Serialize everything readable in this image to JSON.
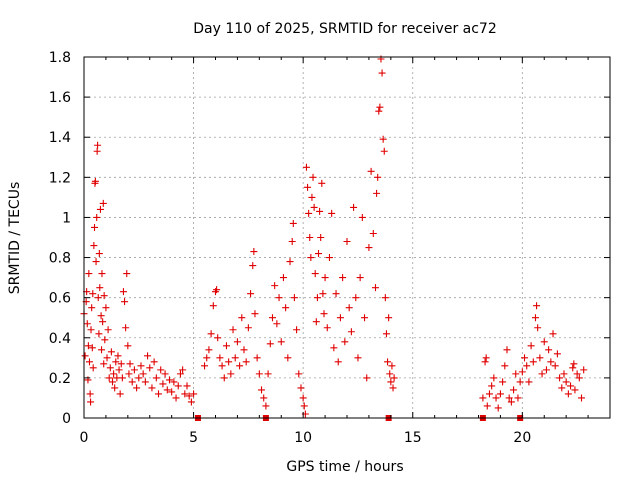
{
  "chart_data": {
    "type": "scatter",
    "title": "Day 110 of 2025, SRMTID for receiver ac72",
    "xlabel": "GPS time / hours",
    "ylabel": "SRMTID / TECUs",
    "xlim": [
      0,
      24
    ],
    "ylim": [
      0,
      1.8
    ],
    "x_ticks": [
      0,
      5,
      10,
      15,
      20
    ],
    "x_tick_labels": [
      "0",
      "5",
      "10",
      "15",
      "20"
    ],
    "y_ticks": [
      0,
      0.2,
      0.4,
      0.6,
      0.8,
      1.0,
      1.2,
      1.4,
      1.6,
      1.8
    ],
    "y_tick_labels": [
      "0",
      "0.2",
      "0.4",
      "0.6",
      "0.8",
      "1",
      "1.2",
      "1.4",
      "1.6",
      "1.8"
    ],
    "grid": true,
    "marker": "+",
    "color": "#e00000",
    "data_gaps_hours": [
      [
        14.2,
        18.2
      ],
      [
        22.8,
        24
      ]
    ],
    "zero_markers_x": [
      5.2,
      8.3,
      13.9,
      18.2,
      19.9
    ],
    "series": [
      {
        "name": "ac72 SRMTID",
        "points": [
          [
            0.0,
            0.52
          ],
          [
            0.05,
            0.31
          ],
          [
            0.1,
            0.58
          ],
          [
            0.12,
            0.63
          ],
          [
            0.15,
            0.47
          ],
          [
            0.18,
            0.19
          ],
          [
            0.2,
            0.36
          ],
          [
            0.22,
            0.72
          ],
          [
            0.25,
            0.28
          ],
          [
            0.28,
            0.12
          ],
          [
            0.3,
            0.08
          ],
          [
            0.32,
            0.44
          ],
          [
            0.35,
            0.55
          ],
          [
            0.38,
            0.35
          ],
          [
            0.4,
            0.62
          ],
          [
            0.42,
            0.25
          ],
          [
            0.45,
            0.86
          ],
          [
            0.48,
            0.95
          ],
          [
            0.5,
            1.17
          ],
          [
            0.52,
            1.18
          ],
          [
            0.55,
            0.78
          ],
          [
            0.58,
            1.0
          ],
          [
            0.6,
            1.33
          ],
          [
            0.62,
            1.36
          ],
          [
            0.65,
            0.6
          ],
          [
            0.68,
            0.42
          ],
          [
            0.7,
            0.82
          ],
          [
            0.72,
            0.65
          ],
          [
            0.75,
            1.04
          ],
          [
            0.78,
            0.51
          ],
          [
            0.8,
            0.34
          ],
          [
            0.82,
            0.72
          ],
          [
            0.85,
            0.48
          ],
          [
            0.88,
            1.07
          ],
          [
            0.9,
            0.27
          ],
          [
            0.92,
            0.61
          ],
          [
            0.95,
            0.39
          ],
          [
            1.0,
            0.55
          ],
          [
            1.05,
            0.3
          ],
          [
            1.1,
            0.44
          ],
          [
            1.15,
            0.2
          ],
          [
            1.2,
            0.25
          ],
          [
            1.25,
            0.33
          ],
          [
            1.3,
            0.18
          ],
          [
            1.35,
            0.22
          ],
          [
            1.4,
            0.15
          ],
          [
            1.45,
            0.28
          ],
          [
            1.5,
            0.2
          ],
          [
            1.55,
            0.31
          ],
          [
            1.6,
            0.24
          ],
          [
            1.65,
            0.12
          ],
          [
            1.7,
            0.27
          ],
          [
            1.75,
            0.2
          ],
          [
            1.8,
            0.63
          ],
          [
            1.85,
            0.58
          ],
          [
            1.9,
            0.45
          ],
          [
            1.95,
            0.72
          ],
          [
            2.0,
            0.36
          ],
          [
            2.05,
            0.22
          ],
          [
            2.1,
            0.27
          ],
          [
            2.2,
            0.18
          ],
          [
            2.3,
            0.24
          ],
          [
            2.4,
            0.15
          ],
          [
            2.5,
            0.2
          ],
          [
            2.6,
            0.26
          ],
          [
            2.7,
            0.22
          ],
          [
            2.8,
            0.18
          ],
          [
            2.9,
            0.31
          ],
          [
            3.0,
            0.25
          ],
          [
            3.1,
            0.15
          ],
          [
            3.2,
            0.28
          ],
          [
            3.3,
            0.2
          ],
          [
            3.4,
            0.12
          ],
          [
            3.5,
            0.24
          ],
          [
            3.6,
            0.17
          ],
          [
            3.7,
            0.22
          ],
          [
            3.8,
            0.14
          ],
          [
            3.9,
            0.19
          ],
          [
            4.0,
            0.13
          ],
          [
            4.1,
            0.18
          ],
          [
            4.2,
            0.1
          ],
          [
            4.3,
            0.16
          ],
          [
            4.4,
            0.22
          ],
          [
            4.5,
            0.24
          ],
          [
            4.6,
            0.12
          ],
          [
            4.7,
            0.16
          ],
          [
            4.8,
            0.11
          ],
          [
            4.9,
            0.08
          ],
          [
            5.0,
            0.12
          ],
          [
            5.5,
            0.26
          ],
          [
            5.6,
            0.3
          ],
          [
            5.7,
            0.34
          ],
          [
            5.8,
            0.42
          ],
          [
            5.9,
            0.56
          ],
          [
            6.0,
            0.63
          ],
          [
            6.05,
            0.64
          ],
          [
            6.1,
            0.4
          ],
          [
            6.2,
            0.3
          ],
          [
            6.3,
            0.26
          ],
          [
            6.4,
            0.2
          ],
          [
            6.5,
            0.36
          ],
          [
            6.6,
            0.28
          ],
          [
            6.7,
            0.22
          ],
          [
            6.8,
            0.44
          ],
          [
            6.9,
            0.3
          ],
          [
            7.0,
            0.38
          ],
          [
            7.1,
            0.26
          ],
          [
            7.2,
            0.5
          ],
          [
            7.3,
            0.34
          ],
          [
            7.4,
            0.28
          ],
          [
            7.5,
            0.45
          ],
          [
            7.6,
            0.62
          ],
          [
            7.7,
            0.76
          ],
          [
            7.75,
            0.83
          ],
          [
            7.8,
            0.52
          ],
          [
            7.9,
            0.3
          ],
          [
            8.0,
            0.22
          ],
          [
            8.1,
            0.14
          ],
          [
            8.2,
            0.1
          ],
          [
            8.3,
            0.06
          ],
          [
            8.4,
            0.22
          ],
          [
            8.5,
            0.37
          ],
          [
            8.6,
            0.5
          ],
          [
            8.7,
            0.66
          ],
          [
            8.8,
            0.47
          ],
          [
            8.9,
            0.6
          ],
          [
            9.0,
            0.38
          ],
          [
            9.1,
            0.7
          ],
          [
            9.2,
            0.55
          ],
          [
            9.3,
            0.3
          ],
          [
            9.4,
            0.78
          ],
          [
            9.5,
            0.88
          ],
          [
            9.55,
            0.97
          ],
          [
            9.6,
            0.6
          ],
          [
            9.7,
            0.44
          ],
          [
            9.8,
            0.22
          ],
          [
            9.9,
            0.15
          ],
          [
            10.0,
            0.1
          ],
          [
            10.05,
            0.06
          ],
          [
            10.1,
            0.02
          ],
          [
            10.15,
            1.25
          ],
          [
            10.2,
            1.15
          ],
          [
            10.25,
            1.02
          ],
          [
            10.3,
            0.9
          ],
          [
            10.35,
            0.8
          ],
          [
            10.4,
            1.1
          ],
          [
            10.45,
            1.2
          ],
          [
            10.5,
            1.05
          ],
          [
            10.55,
            0.72
          ],
          [
            10.6,
            0.48
          ],
          [
            10.65,
            0.6
          ],
          [
            10.7,
            0.82
          ],
          [
            10.75,
            1.03
          ],
          [
            10.8,
            0.9
          ],
          [
            10.85,
            1.17
          ],
          [
            10.9,
            0.62
          ],
          [
            10.95,
            0.52
          ],
          [
            11.0,
            0.7
          ],
          [
            11.1,
            0.45
          ],
          [
            11.2,
            0.8
          ],
          [
            11.3,
            1.02
          ],
          [
            11.4,
            0.35
          ],
          [
            11.5,
            0.62
          ],
          [
            11.6,
            0.28
          ],
          [
            11.7,
            0.5
          ],
          [
            11.8,
            0.7
          ],
          [
            11.9,
            0.38
          ],
          [
            12.0,
            0.88
          ],
          [
            12.1,
            0.55
          ],
          [
            12.2,
            0.43
          ],
          [
            12.3,
            1.05
          ],
          [
            12.4,
            0.6
          ],
          [
            12.5,
            0.3
          ],
          [
            12.6,
            0.7
          ],
          [
            12.7,
            1.0
          ],
          [
            12.8,
            0.5
          ],
          [
            12.9,
            0.2
          ],
          [
            13.0,
            0.85
          ],
          [
            13.1,
            1.23
          ],
          [
            13.2,
            0.92
          ],
          [
            13.3,
            0.65
          ],
          [
            13.35,
            1.12
          ],
          [
            13.4,
            1.2
          ],
          [
            13.45,
            1.53
          ],
          [
            13.5,
            1.55
          ],
          [
            13.55,
            1.79
          ],
          [
            13.6,
            1.72
          ],
          [
            13.65,
            1.39
          ],
          [
            13.7,
            1.33
          ],
          [
            13.75,
            0.6
          ],
          [
            13.8,
            0.42
          ],
          [
            13.85,
            0.28
          ],
          [
            13.9,
            0.5
          ],
          [
            13.95,
            0.22
          ],
          [
            14.0,
            0.18
          ],
          [
            14.05,
            0.26
          ],
          [
            14.1,
            0.15
          ],
          [
            14.15,
            0.2
          ],
          [
            18.2,
            0.1
          ],
          [
            18.3,
            0.28
          ],
          [
            18.35,
            0.3
          ],
          [
            18.4,
            0.06
          ],
          [
            18.5,
            0.12
          ],
          [
            18.6,
            0.16
          ],
          [
            18.7,
            0.2
          ],
          [
            18.8,
            0.1
          ],
          [
            18.9,
            0.05
          ],
          [
            19.0,
            0.12
          ],
          [
            19.1,
            0.18
          ],
          [
            19.2,
            0.26
          ],
          [
            19.3,
            0.34
          ],
          [
            19.4,
            0.1
          ],
          [
            19.5,
            0.08
          ],
          [
            19.6,
            0.14
          ],
          [
            19.7,
            0.22
          ],
          [
            19.8,
            0.1
          ],
          [
            19.9,
            0.18
          ],
          [
            20.0,
            0.23
          ],
          [
            20.1,
            0.3
          ],
          [
            20.2,
            0.26
          ],
          [
            20.3,
            0.18
          ],
          [
            20.4,
            0.36
          ],
          [
            20.5,
            0.28
          ],
          [
            20.6,
            0.5
          ],
          [
            20.65,
            0.56
          ],
          [
            20.7,
            0.45
          ],
          [
            20.8,
            0.3
          ],
          [
            20.9,
            0.22
          ],
          [
            21.0,
            0.38
          ],
          [
            21.1,
            0.24
          ],
          [
            21.2,
            0.34
          ],
          [
            21.3,
            0.28
          ],
          [
            21.4,
            0.42
          ],
          [
            21.5,
            0.26
          ],
          [
            21.6,
            0.32
          ],
          [
            21.7,
            0.2
          ],
          [
            21.8,
            0.15
          ],
          [
            21.9,
            0.22
          ],
          [
            22.0,
            0.18
          ],
          [
            22.1,
            0.12
          ],
          [
            22.2,
            0.16
          ],
          [
            22.3,
            0.25
          ],
          [
            22.35,
            0.27
          ],
          [
            22.4,
            0.14
          ],
          [
            22.5,
            0.22
          ],
          [
            22.6,
            0.2
          ],
          [
            22.7,
            0.1
          ],
          [
            22.8,
            0.24
          ]
        ]
      }
    ]
  }
}
